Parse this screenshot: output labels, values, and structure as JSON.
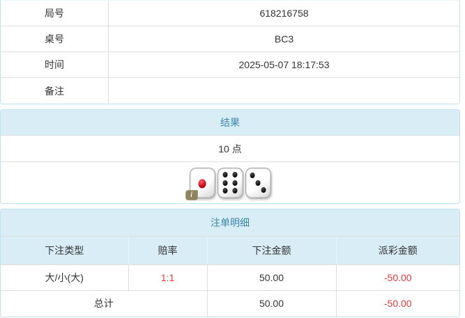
{
  "info_table": {
    "rows": [
      {
        "label": "局号",
        "value": "618216758"
      },
      {
        "label": "桌号",
        "value": "BC3"
      },
      {
        "label": "时间",
        "value": "2025-05-07 18:17:53"
      },
      {
        "label": "备注",
        "value": ""
      }
    ]
  },
  "result_panel": {
    "title": "结果",
    "points": "10 点",
    "dice": [
      1,
      6,
      3
    ],
    "info_badge_glyph": "i"
  },
  "bets_panel": {
    "title": "注单明细",
    "columns": [
      "下注类型",
      "赔率",
      "下注金额",
      "派彩金额"
    ],
    "rows": [
      {
        "bet_type": "大/小(大)",
        "odds": "1:1",
        "bet_amount": "50.00",
        "payout": "-50.00"
      }
    ],
    "total": {
      "label": "总计",
      "bet_amount": "50.00",
      "payout": "-50.00"
    }
  },
  "colors": {
    "panel_border": "#bfe1ee",
    "header_bg": "#d9edf7",
    "header_text": "#3a87ad",
    "separator": "#dddddd",
    "text": "#333333",
    "negative": "#e4393c",
    "badge_bg": "#857c54"
  }
}
